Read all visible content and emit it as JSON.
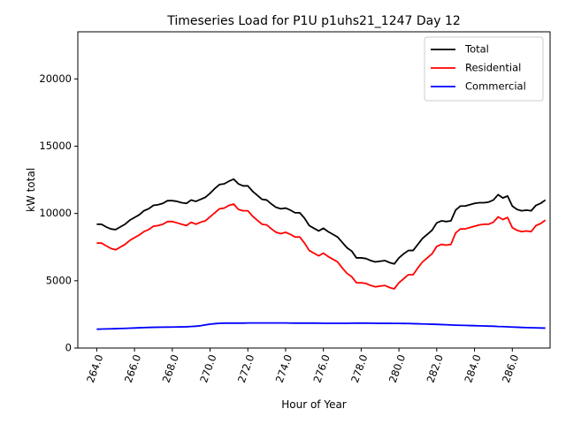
{
  "chart_data": {
    "type": "line",
    "title": "Timeseries Load for P1U p1uhs21_1247  Day 12",
    "xlabel": "Hour of Year",
    "ylabel": "kW total",
    "xlim": [
      263.0,
      288.0
    ],
    "ylim": [
      0,
      23500
    ],
    "xticks": [
      264,
      266,
      268,
      270,
      272,
      274,
      276,
      278,
      280,
      282,
      284,
      286
    ],
    "xtick_labels": [
      "264.0",
      "266.0",
      "268.0",
      "270.0",
      "272.0",
      "274.0",
      "276.0",
      "278.0",
      "280.0",
      "282.0",
      "284.0",
      "286.0"
    ],
    "yticks": [
      0,
      5000,
      10000,
      15000,
      20000
    ],
    "ytick_labels": [
      "0",
      "5000",
      "10000",
      "15000",
      "20000"
    ],
    "legend_position": "top-right",
    "x": [
      264.0,
      264.25,
      264.5,
      264.75,
      265.0,
      265.25,
      265.5,
      265.75,
      266.0,
      266.25,
      266.5,
      266.75,
      267.0,
      267.25,
      267.5,
      267.75,
      268.0,
      268.25,
      268.5,
      268.75,
      269.0,
      269.25,
      269.5,
      269.75,
      270.0,
      270.25,
      270.5,
      270.75,
      271.0,
      271.25,
      271.5,
      271.75,
      272.0,
      272.25,
      272.5,
      272.75,
      273.0,
      273.25,
      273.5,
      273.75,
      274.0,
      274.25,
      274.5,
      274.75,
      275.0,
      275.25,
      275.5,
      275.75,
      276.0,
      276.25,
      276.5,
      276.75,
      277.0,
      277.25,
      277.5,
      277.75,
      278.0,
      278.25,
      278.5,
      278.75,
      279.0,
      279.25,
      279.5,
      279.75,
      280.0,
      280.25,
      280.5,
      280.75,
      281.0,
      281.25,
      281.5,
      281.75,
      282.0,
      282.25,
      282.5,
      282.75,
      283.0,
      283.25,
      283.5,
      283.75,
      284.0,
      284.25,
      284.5,
      284.75,
      285.0,
      285.25,
      285.5,
      285.75,
      286.0,
      286.25,
      286.5,
      286.75,
      287.0,
      287.25,
      287.5,
      287.75
    ],
    "series": [
      {
        "name": "Total",
        "color": "#000000",
        "values": [
          9200,
          9200,
          9000,
          8850,
          8800,
          9000,
          9200,
          9500,
          9700,
          9900,
          10200,
          10350,
          10600,
          10650,
          10750,
          10950,
          10950,
          10900,
          10800,
          10750,
          11000,
          10900,
          11050,
          11200,
          11500,
          11850,
          12150,
          12200,
          12400,
          12550,
          12200,
          12050,
          12050,
          11650,
          11350,
          11050,
          11000,
          10700,
          10450,
          10350,
          10400,
          10250,
          10050,
          10050,
          9650,
          9100,
          8900,
          8700,
          8900,
          8650,
          8450,
          8250,
          7850,
          7450,
          7200,
          6700,
          6700,
          6650,
          6500,
          6400,
          6450,
          6500,
          6350,
          6250,
          6700,
          7000,
          7250,
          7250,
          7700,
          8150,
          8450,
          8750,
          9300,
          9450,
          9400,
          9450,
          10250,
          10550,
          10550,
          10650,
          10750,
          10800,
          10800,
          10850,
          11000,
          11400,
          11150,
          11300,
          10550,
          10300,
          10200,
          10250,
          10200,
          10600,
          10750,
          11000
        ]
      },
      {
        "name": "Residential",
        "color": "#ff0000",
        "values": [
          7800,
          7800,
          7600,
          7400,
          7300,
          7500,
          7700,
          8000,
          8200,
          8400,
          8650,
          8800,
          9050,
          9100,
          9200,
          9400,
          9400,
          9300,
          9200,
          9100,
          9350,
          9200,
          9350,
          9450,
          9750,
          10050,
          10350,
          10400,
          10600,
          10700,
          10300,
          10200,
          10200,
          9800,
          9500,
          9200,
          9150,
          8850,
          8600,
          8500,
          8600,
          8450,
          8250,
          8250,
          7800,
          7250,
          7050,
          6850,
          7050,
          6800,
          6600,
          6400,
          5950,
          5550,
          5300,
          4850,
          4850,
          4800,
          4650,
          4550,
          4600,
          4650,
          4500,
          4400,
          4850,
          5150,
          5450,
          5450,
          5950,
          6400,
          6700,
          7000,
          7550,
          7700,
          7650,
          7700,
          8550,
          8850,
          8850,
          8950,
          9050,
          9150,
          9200,
          9200,
          9350,
          9750,
          9550,
          9700,
          8950,
          8750,
          8650,
          8700,
          8650,
          9100,
          9250,
          9500
        ]
      },
      {
        "name": "Commercial",
        "color": "#0000ff",
        "values": [
          1400,
          1410,
          1420,
          1430,
          1440,
          1450,
          1460,
          1475,
          1490,
          1505,
          1520,
          1530,
          1540,
          1545,
          1550,
          1555,
          1560,
          1565,
          1570,
          1580,
          1600,
          1620,
          1660,
          1720,
          1770,
          1810,
          1840,
          1850,
          1850,
          1850,
          1850,
          1850,
          1860,
          1860,
          1860,
          1860,
          1860,
          1860,
          1860,
          1860,
          1860,
          1855,
          1850,
          1850,
          1850,
          1850,
          1850,
          1845,
          1840,
          1840,
          1840,
          1840,
          1840,
          1840,
          1845,
          1850,
          1850,
          1850,
          1845,
          1840,
          1835,
          1835,
          1835,
          1830,
          1830,
          1825,
          1820,
          1810,
          1800,
          1790,
          1780,
          1770,
          1760,
          1745,
          1730,
          1715,
          1700,
          1690,
          1680,
          1670,
          1660,
          1650,
          1640,
          1630,
          1620,
          1600,
          1590,
          1575,
          1560,
          1545,
          1530,
          1520,
          1510,
          1500,
          1490,
          1480
        ]
      }
    ]
  }
}
